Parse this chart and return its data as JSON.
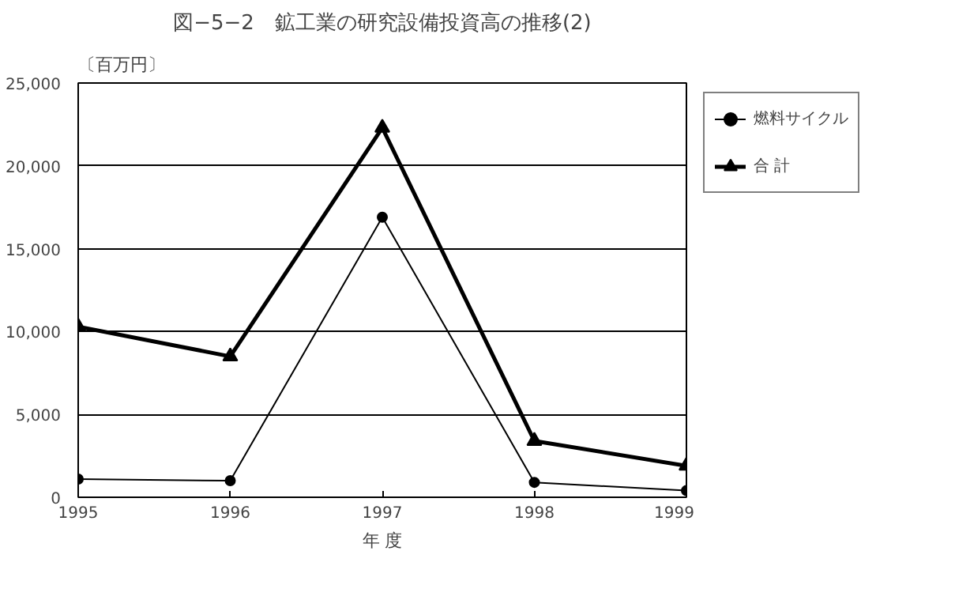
{
  "chart_data": {
    "type": "line",
    "title": "図−5−2　鉱工業の研究設備投資高の推移(2)",
    "xlabel": "年 度",
    "ylabel": "〔百万円〕",
    "x": [
      1995,
      1996,
      1997,
      1998,
      1999
    ],
    "series": [
      {
        "name": "燃料サイクル",
        "color": "#000000",
        "marker": "circle",
        "values": [
          1100,
          1000,
          16900,
          900,
          400
        ]
      },
      {
        "name": "合 計",
        "color": "#000000",
        "marker": "triangle",
        "values": [
          10300,
          8500,
          22300,
          3400,
          1900
        ]
      }
    ],
    "xlim": [
      1995,
      1999
    ],
    "xticks": [
      1995,
      1996,
      1997,
      1998,
      1999
    ],
    "ylim": [
      0,
      25000
    ],
    "yticks": [
      0,
      {
        "value": 5000,
        "label": "5,000"
      },
      {
        "value": 10000,
        "label": "10,000"
      },
      {
        "value": 15000,
        "label": "15,000"
      },
      {
        "value": 20000,
        "label": "20,000"
      },
      {
        "value": 25000,
        "label": "25,000"
      }
    ],
    "grid": "y",
    "legend": "right",
    "line_style": "solid"
  }
}
